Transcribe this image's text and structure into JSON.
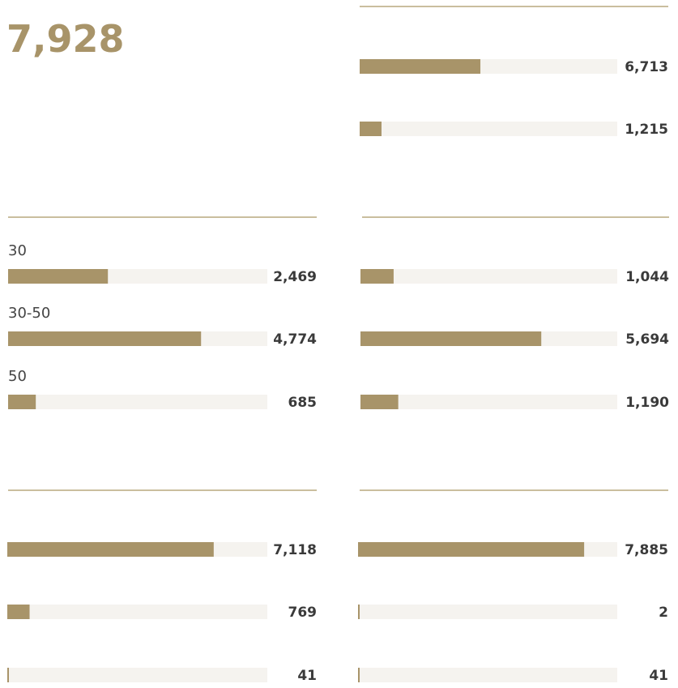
{
  "total": "7,928",
  "groups": [
    {
      "bars": [
        {
          "value": 6713,
          "value_label": "6,713"
        },
        {
          "value": 1215,
          "value_label": "1,215"
        }
      ]
    },
    {
      "bars": [
        {
          "label": "30",
          "value": 2469,
          "value_label": "2,469"
        },
        {
          "label": "30-50",
          "value": 4774,
          "value_label": "4,774"
        },
        {
          "label": "50",
          "value": 685,
          "value_label": "685"
        }
      ]
    },
    {
      "bars": [
        {
          "value": 1044,
          "value_label": "1,044"
        },
        {
          "value": 5694,
          "value_label": "5,694"
        },
        {
          "value": 1190,
          "value_label": "1,190"
        }
      ]
    },
    {
      "bars": [
        {
          "value": 7118,
          "value_label": "7,118"
        },
        {
          "value": 769,
          "value_label": "769"
        },
        {
          "value": 41,
          "value_label": "41"
        }
      ]
    },
    {
      "bars": [
        {
          "value": 7885,
          "value_label": "7,885"
        },
        {
          "value": 2,
          "value_label": "2"
        },
        {
          "value": 41,
          "value_label": "41"
        }
      ]
    }
  ]
}
